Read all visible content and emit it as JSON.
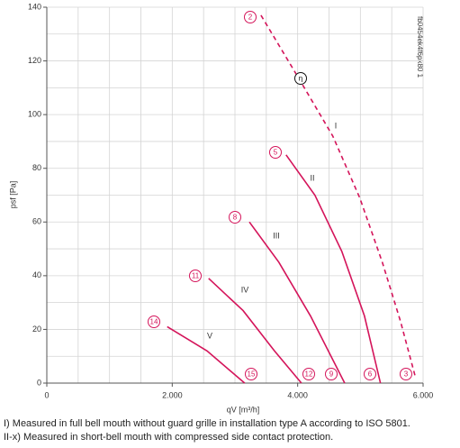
{
  "chart_data": {
    "type": "line",
    "xlabel": "qV [m³/h]",
    "ylabel": "psf [Pa]",
    "code": "fb0454ek4f6pk80 1",
    "xlim": [
      0,
      6000
    ],
    "ylim": [
      0,
      140
    ],
    "xticks": [
      0,
      {
        "value": 2000,
        "label": "2.000"
      },
      {
        "value": 4000,
        "label": "4.000"
      },
      {
        "value": 6000,
        "label": "6.000"
      }
    ],
    "yticks": [
      0,
      20,
      40,
      60,
      80,
      100,
      120,
      140
    ],
    "xgrid": [
      500,
      1000,
      1500,
      2000,
      2500,
      3000,
      3500,
      4000,
      4500,
      5000,
      5500,
      6000
    ],
    "ygrid": [
      10,
      20,
      30,
      40,
      50,
      60,
      70,
      80,
      90,
      100,
      110,
      120,
      130,
      140
    ],
    "grid": true,
    "series": [
      {
        "name": "I",
        "color": "#d4145a",
        "dashed": true,
        "x": [
          3415,
          4030,
          4560,
          4990,
          5350,
          5640,
          5880
        ],
        "values": [
          137,
          113,
          92,
          69,
          45,
          23,
          2
        ]
      },
      {
        "name": "II",
        "color": "#d4145a",
        "dashed": false,
        "x": [
          3815,
          4275,
          4705,
          5065,
          5320
        ],
        "values": [
          85,
          70,
          49,
          25,
          0
        ]
      },
      {
        "name": "III",
        "color": "#d4145a",
        "dashed": false,
        "x": [
          3230,
          3700,
          4205,
          4750
        ],
        "values": [
          60,
          45,
          25,
          0
        ]
      },
      {
        "name": "IV",
        "color": "#d4145a",
        "dashed": false,
        "x": [
          2580,
          3130,
          3630,
          4060
        ],
        "values": [
          39,
          27,
          12,
          0
        ]
      },
      {
        "name": "V",
        "color": "#d4145a",
        "dashed": false,
        "x": [
          1920,
          2555,
          3155
        ],
        "values": [
          21,
          12,
          0
        ]
      }
    ],
    "annotations": [
      "2",
      "η",
      "5",
      "8",
      "11",
      "14",
      "15",
      "12",
      "9",
      "6",
      "3"
    ],
    "notes": [
      "I) Measured in full bell mouth without guard grille in installation type A according to ISO 5801.",
      "II-x) Measured in short-bell mouth with compressed side contact protection."
    ]
  }
}
